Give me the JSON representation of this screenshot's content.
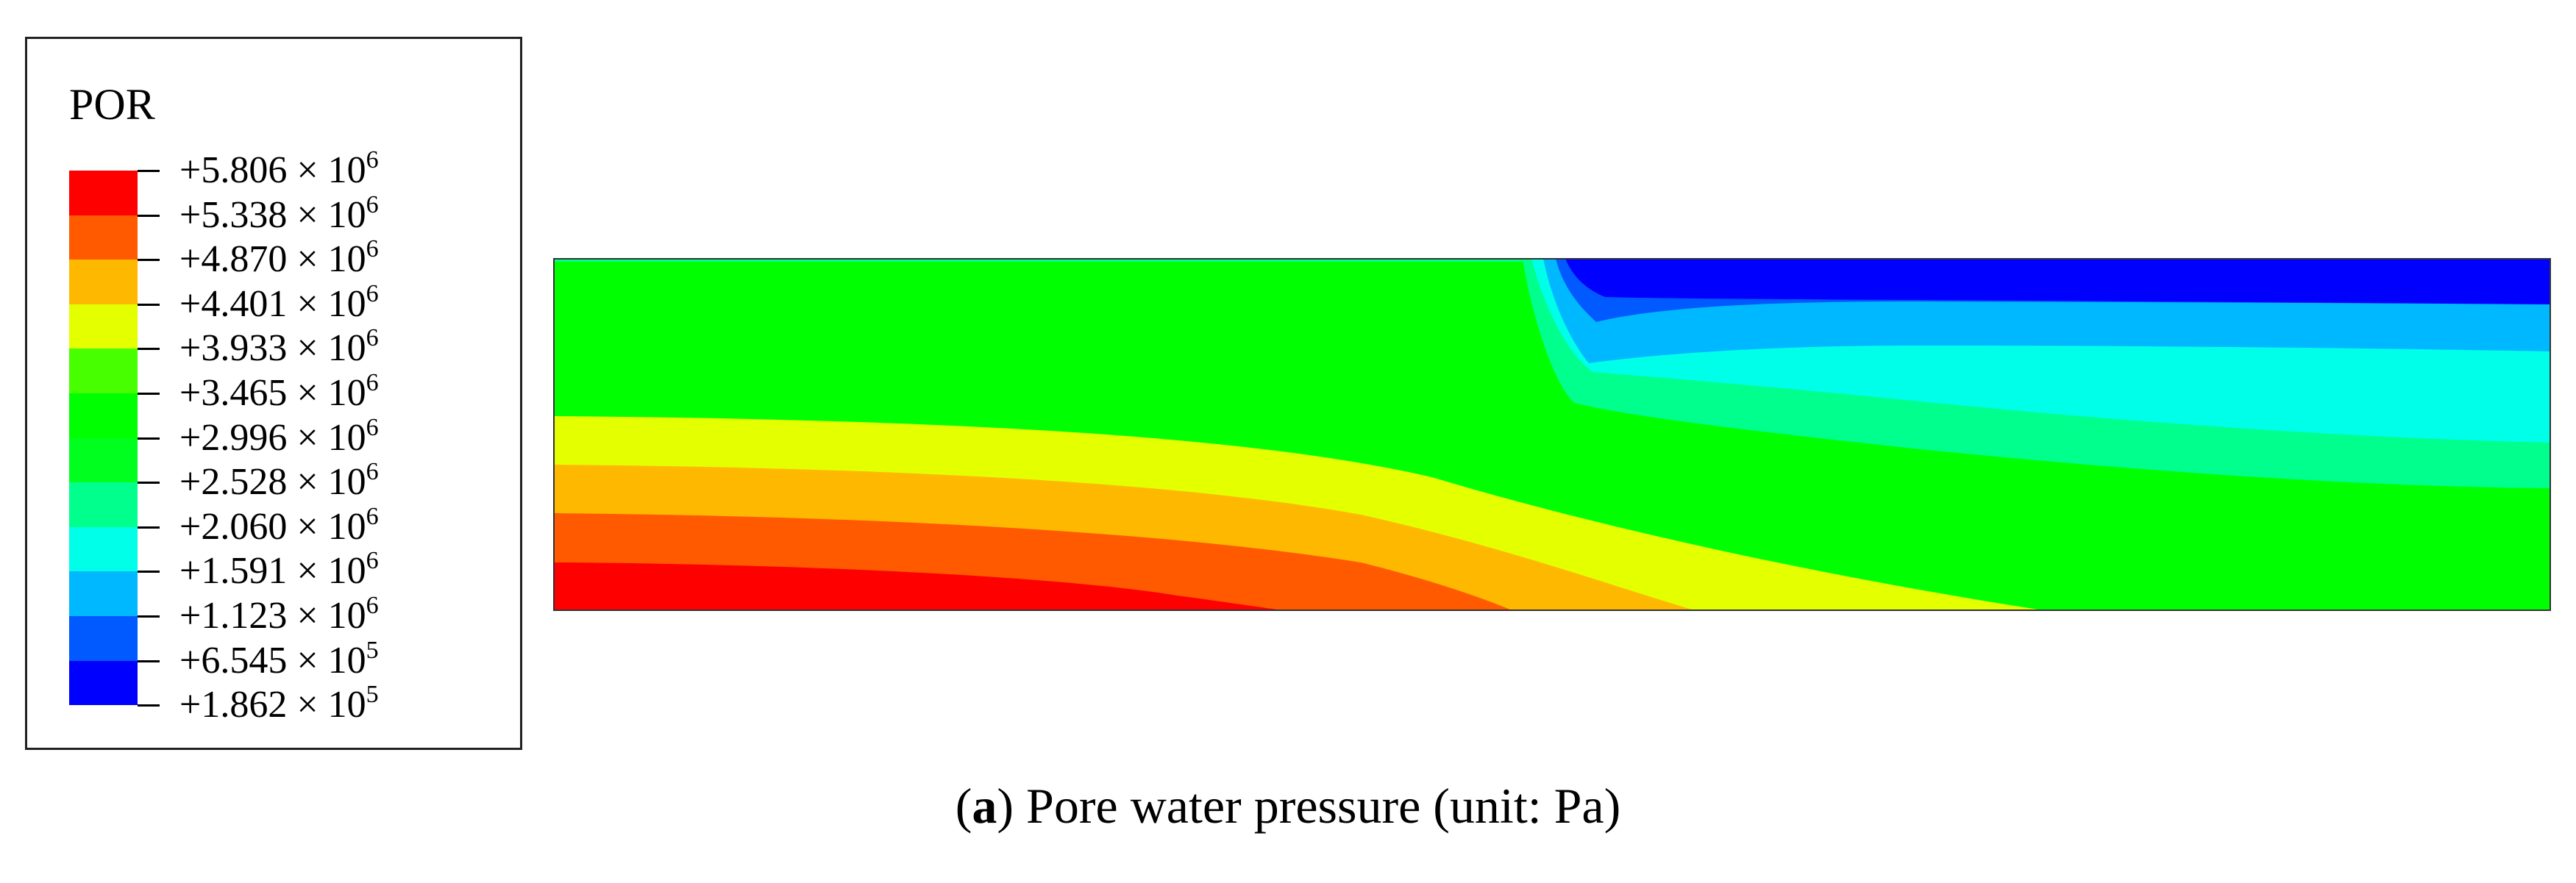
{
  "legend": {
    "title": "POR",
    "ticks": [
      {
        "mantissa": "+5.806",
        "exponent": "6"
      },
      {
        "mantissa": "+5.338",
        "exponent": "6"
      },
      {
        "mantissa": "+4.870",
        "exponent": "6"
      },
      {
        "mantissa": "+4.401",
        "exponent": "6"
      },
      {
        "mantissa": "+3.933",
        "exponent": "6"
      },
      {
        "mantissa": "+3.465",
        "exponent": "6"
      },
      {
        "mantissa": "+2.996",
        "exponent": "6"
      },
      {
        "mantissa": "+2.528",
        "exponent": "6"
      },
      {
        "mantissa": "+2.060",
        "exponent": "6"
      },
      {
        "mantissa": "+1.591",
        "exponent": "6"
      },
      {
        "mantissa": "+1.123",
        "exponent": "6"
      },
      {
        "mantissa": "+6.545",
        "exponent": "5"
      },
      {
        "mantissa": "+1.862",
        "exponent": "5"
      }
    ],
    "times_symbol": "×",
    "base": "10",
    "colors": [
      "#ff0000",
      "#ff5a00",
      "#ffb800",
      "#e4ff00",
      "#48ff00",
      "#00ff00",
      "#00ff1f",
      "#00ff8c",
      "#00ffe8",
      "#00b8ff",
      "#005aff",
      "#0000ff"
    ]
  },
  "caption": {
    "label": "a",
    "open": "(",
    "close": ")",
    "text": " Pore water pressure (unit: Pa)"
  },
  "contour_colors": {
    "red": "#ff0000",
    "orange": "#ff5a00",
    "amber": "#ffb800",
    "yellow": "#e4ff00",
    "green": "#00ff00",
    "mint": "#00ff8c",
    "cyan": "#00ffe8",
    "sky": "#00b8ff",
    "blue_mid": "#005aff",
    "blue": "#0000ff"
  }
}
